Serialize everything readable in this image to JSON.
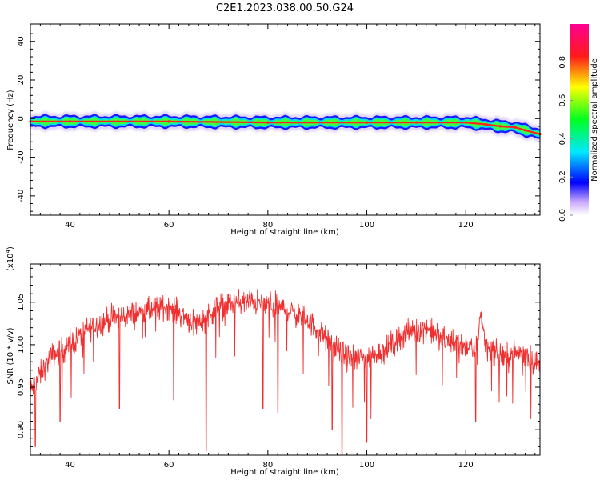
{
  "title": "C2E1.2023.038.00.50.G24",
  "colors": {
    "snr_line": "#f03030",
    "axis": "#000000",
    "band_outer": "#c8b4f8",
    "band_blue": "#1a1aff",
    "band_cyan": "#00e0e0",
    "band_green": "#40ff40",
    "band_red": "#ff2020"
  },
  "chart_data": [
    {
      "type": "heatmap",
      "xlabel": "Height of straight line (km)",
      "ylabel": "Frequency (Hz)",
      "xlim": [
        32,
        135
      ],
      "ylim": [
        -50,
        49
      ],
      "xticks": [
        40,
        60,
        80,
        100,
        120
      ],
      "xtick_labels": [
        "40",
        "60",
        "80",
        "100",
        "120"
      ],
      "yticks": [
        40,
        20,
        0,
        -20,
        -40
      ],
      "ytick_labels": [
        "40",
        "20",
        "0",
        "-20",
        "-40"
      ],
      "grid": false,
      "ridge": {
        "x": [
          32,
          40,
          60,
          80,
          100,
          110,
          120,
          124,
          127,
          130,
          132,
          135
        ],
        "y": [
          -1.5,
          -1.5,
          -1.5,
          -2,
          -2,
          -2,
          -2,
          -3,
          -4,
          -4.5,
          -6,
          -8
        ]
      },
      "colorbar": {
        "label": "Normalized spectral amplitude",
        "range": [
          0,
          1
        ],
        "ticks": [
          0.0,
          0.2,
          0.4,
          0.6,
          0.8
        ],
        "tick_labels": [
          "0.0",
          "0.2",
          "0.4",
          "0.6",
          "0.8"
        ]
      }
    },
    {
      "type": "line",
      "xlabel": "Height of straight line (km)",
      "ylabel": "SNR (10 * v/v)",
      "multiplier": "(x10",
      "multiplier_exp": "4",
      "multiplier_close": ")",
      "xlim": [
        32,
        135
      ],
      "ylim": [
        0.87,
        1.095
      ],
      "xticks": [
        40,
        60,
        80,
        100,
        120
      ],
      "xtick_labels": [
        "40",
        "60",
        "80",
        "100",
        "120"
      ],
      "yticks": [
        0.9,
        0.95,
        1.0,
        1.05
      ],
      "ytick_labels": [
        "0.90",
        "0.95",
        "1.00",
        "1.05"
      ],
      "grid": false,
      "trend": {
        "x": [
          32,
          34,
          36,
          40,
          44,
          48,
          52,
          56,
          60,
          64,
          66,
          70,
          74,
          78,
          82,
          86,
          88,
          92,
          96,
          100,
          104,
          108,
          112,
          116,
          120,
          122,
          123,
          124,
          126,
          128,
          130,
          132,
          135
        ],
        "y": [
          0.945,
          0.965,
          0.985,
          1.0,
          1.02,
          1.03,
          1.035,
          1.04,
          1.045,
          1.03,
          1.025,
          1.045,
          1.05,
          1.05,
          1.045,
          1.035,
          1.03,
          1.005,
          0.985,
          0.985,
          0.995,
          1.015,
          1.02,
          1.005,
          1.0,
          0.99,
          1.04,
          1.0,
          0.99,
          0.985,
          0.99,
          0.99,
          0.975
        ]
      },
      "dips": {
        "x": [
          33,
          38,
          50,
          61,
          67.5,
          79,
          82,
          93,
          95,
          100,
          122
        ],
        "y": [
          0.88,
          0.91,
          0.925,
          0.935,
          0.875,
          0.925,
          0.92,
          0.9,
          0.87,
          0.885,
          0.91
        ]
      }
    }
  ]
}
